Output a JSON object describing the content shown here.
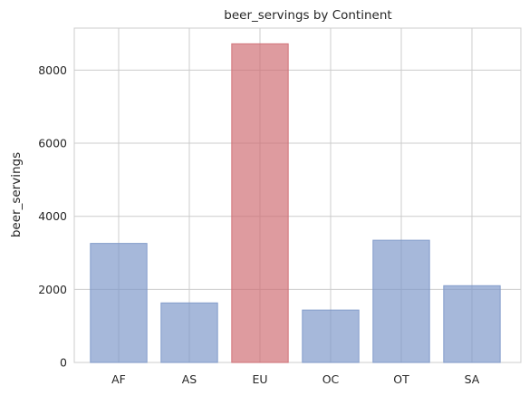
{
  "chart_data": {
    "type": "bar",
    "title": "beer_servings by Continent",
    "xlabel": "",
    "ylabel": "beer_servings",
    "categories": [
      "AF",
      "AS",
      "EU",
      "OC",
      "OT",
      "SA"
    ],
    "values": [
      3258,
      1630,
      8720,
      1435,
      3345,
      2101
    ],
    "ylim": [
      0,
      9150
    ],
    "yticks": [
      0,
      2000,
      4000,
      6000,
      8000
    ],
    "grid": true,
    "bar_color": "#7c97c8",
    "highlight_color": "#cf6c72",
    "highlight_category": "EU",
    "bar_alpha": 0.68
  }
}
